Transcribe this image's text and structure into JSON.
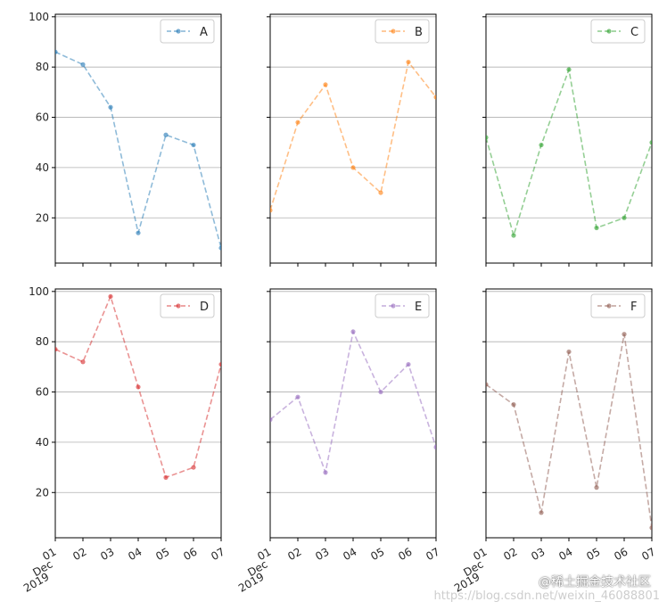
{
  "chart_data": {
    "type": "line",
    "layout": "2x3 subplots, shared y axis per row, shared x axis per column",
    "x": [
      "01",
      "02",
      "03",
      "04",
      "05",
      "06",
      "07"
    ],
    "x_first_label": [
      "01",
      "Dec",
      "2019"
    ],
    "ylim": [
      2,
      101
    ],
    "yticks": [
      20,
      40,
      60,
      80,
      100
    ],
    "grid": "horizontal",
    "line_style": "dashed with dot markers, alpha 0.5",
    "legend_position": "top-right",
    "series": [
      {
        "name": "A",
        "color": "#1f77b4",
        "values": [
          86,
          81,
          64,
          14,
          53,
          49,
          8
        ]
      },
      {
        "name": "B",
        "color": "#ff7f0e",
        "values": [
          23,
          58,
          73,
          40,
          30,
          82,
          68
        ]
      },
      {
        "name": "C",
        "color": "#2ca02c",
        "values": [
          52,
          13,
          49,
          79,
          16,
          20,
          50
        ]
      },
      {
        "name": "D",
        "color": "#d62728",
        "values": [
          77,
          72,
          98,
          62,
          26,
          30,
          71
        ]
      },
      {
        "name": "E",
        "color": "#9467bd",
        "values": [
          49,
          58,
          28,
          84,
          60,
          71,
          38
        ]
      },
      {
        "name": "F",
        "color": "#8c564b",
        "values": [
          63,
          55,
          12,
          76,
          22,
          83,
          6
        ]
      }
    ]
  },
  "watermark": {
    "primary": "@稀土掘金技术社区",
    "secondary": "https://blog.csdn.net/weixin_46088801"
  }
}
